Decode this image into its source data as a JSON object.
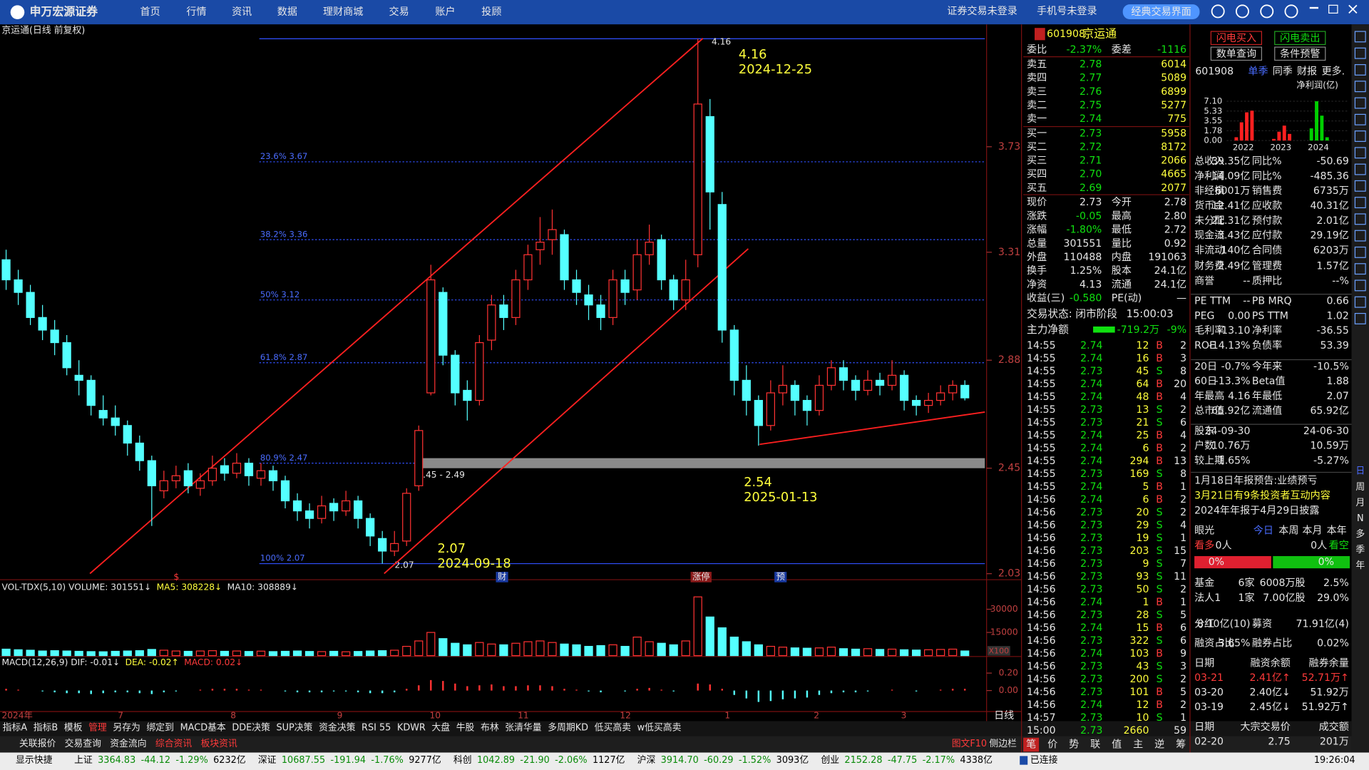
{
  "header": {
    "logo": "申万宏源证券",
    "nav": [
      "首页",
      "行情",
      "资讯",
      "数据",
      "理财商城",
      "交易",
      "账户",
      "投顾"
    ],
    "status": [
      "证券交易未登录",
      "手机号未登录"
    ],
    "button": "经典交易界面"
  },
  "chart_data": {
    "type": "candlestick",
    "title": "京运通(日线 前复权)",
    "up_color": "#ff3232",
    "down_color": "#54ffff",
    "ylim": [
      2.02,
      4.21
    ],
    "yticks": [
      3.73,
      3.31,
      2.88,
      2.45,
      2.03
    ],
    "ohlc": [
      [
        3.28,
        3.32,
        3.16,
        3.2
      ],
      [
        3.2,
        3.24,
        3.1,
        3.15
      ],
      [
        3.15,
        3.18,
        3.02,
        3.05
      ],
      [
        3.05,
        3.1,
        2.96,
        3.0
      ],
      [
        3.0,
        3.04,
        2.9,
        2.95
      ],
      [
        2.95,
        2.98,
        2.82,
        2.85
      ],
      [
        2.82,
        2.88,
        2.74,
        2.8
      ],
      [
        2.8,
        2.82,
        2.66,
        2.7
      ],
      [
        2.68,
        2.74,
        2.62,
        2.65
      ],
      [
        2.65,
        2.7,
        2.58,
        2.62
      ],
      [
        2.62,
        2.64,
        2.5,
        2.55
      ],
      [
        2.55,
        2.58,
        2.44,
        2.48
      ],
      [
        2.48,
        2.5,
        2.22,
        2.38
      ],
      [
        2.36,
        2.44,
        2.33,
        2.4
      ],
      [
        2.4,
        2.46,
        2.37,
        2.42
      ],
      [
        2.44,
        2.47,
        2.35,
        2.38
      ],
      [
        2.37,
        2.43,
        2.34,
        2.4
      ],
      [
        2.4,
        2.5,
        2.38,
        2.45
      ],
      [
        2.46,
        2.49,
        2.4,
        2.43
      ],
      [
        2.43,
        2.51,
        2.41,
        2.47
      ],
      [
        2.47,
        2.49,
        2.38,
        2.42
      ],
      [
        2.41,
        2.47,
        2.38,
        2.44
      ],
      [
        2.44,
        2.46,
        2.36,
        2.4
      ],
      [
        2.4,
        2.42,
        2.29,
        2.32
      ],
      [
        2.32,
        2.35,
        2.24,
        2.28
      ],
      [
        2.28,
        2.31,
        2.21,
        2.25
      ],
      [
        2.25,
        2.34,
        2.23,
        2.3
      ],
      [
        2.31,
        2.33,
        2.24,
        2.28
      ],
      [
        2.28,
        2.36,
        2.26,
        2.32
      ],
      [
        2.32,
        2.34,
        2.21,
        2.25
      ],
      [
        2.25,
        2.27,
        2.14,
        2.18
      ],
      [
        2.17,
        2.2,
        2.07,
        2.12
      ],
      [
        2.12,
        2.2,
        2.1,
        2.15
      ],
      [
        2.16,
        2.37,
        2.14,
        2.35
      ],
      [
        2.38,
        2.62,
        2.36,
        2.6
      ],
      [
        2.75,
        3.26,
        2.74,
        3.2
      ],
      [
        3.15,
        3.17,
        2.86,
        2.9
      ],
      [
        2.9,
        2.92,
        2.7,
        2.75
      ],
      [
        2.76,
        2.8,
        2.64,
        2.72
      ],
      [
        2.72,
        2.98,
        2.7,
        2.95
      ],
      [
        2.96,
        3.14,
        2.92,
        3.1
      ],
      [
        3.1,
        3.14,
        3.0,
        3.05
      ],
      [
        3.05,
        3.24,
        3.02,
        3.2
      ],
      [
        3.2,
        3.34,
        3.16,
        3.3
      ],
      [
        3.32,
        3.45,
        3.26,
        3.35
      ],
      [
        3.36,
        3.48,
        3.3,
        3.4
      ],
      [
        3.38,
        3.4,
        3.16,
        3.2
      ],
      [
        3.2,
        3.24,
        3.1,
        3.15
      ],
      [
        3.14,
        3.18,
        3.04,
        3.1
      ],
      [
        3.1,
        3.14,
        3.0,
        3.05
      ],
      [
        3.05,
        3.24,
        3.02,
        3.2
      ],
      [
        3.2,
        3.24,
        3.1,
        3.15
      ],
      [
        3.16,
        3.36,
        3.12,
        3.3
      ],
      [
        3.3,
        3.42,
        3.26,
        3.35
      ],
      [
        3.36,
        3.38,
        3.16,
        3.2
      ],
      [
        3.2,
        3.22,
        3.08,
        3.12
      ],
      [
        3.12,
        3.28,
        3.08,
        3.2
      ],
      [
        3.3,
        4.16,
        3.25,
        3.9
      ],
      [
        3.85,
        3.92,
        3.4,
        3.55
      ],
      [
        3.5,
        3.55,
        2.95,
        3.0
      ],
      [
        3.0,
        3.02,
        2.74,
        2.8
      ],
      [
        2.8,
        2.86,
        2.66,
        2.72
      ],
      [
        2.72,
        2.74,
        2.54,
        2.62
      ],
      [
        2.62,
        2.8,
        2.6,
        2.75
      ],
      [
        2.75,
        2.86,
        2.7,
        2.78
      ],
      [
        2.78,
        2.8,
        2.66,
        2.72
      ],
      [
        2.72,
        2.74,
        2.62,
        2.68
      ],
      [
        2.68,
        2.82,
        2.66,
        2.78
      ],
      [
        2.78,
        2.88,
        2.76,
        2.85
      ],
      [
        2.85,
        2.88,
        2.76,
        2.8
      ],
      [
        2.8,
        2.82,
        2.72,
        2.76
      ],
      [
        2.76,
        2.84,
        2.74,
        2.8
      ],
      [
        2.8,
        2.83,
        2.74,
        2.78
      ],
      [
        2.78,
        2.88,
        2.76,
        2.82
      ],
      [
        2.82,
        2.84,
        2.68,
        2.72
      ],
      [
        2.72,
        2.74,
        2.66,
        2.7
      ],
      [
        2.7,
        2.75,
        2.67,
        2.72
      ],
      [
        2.72,
        2.78,
        2.7,
        2.75
      ],
      [
        2.75,
        2.8,
        2.72,
        2.78
      ],
      [
        2.78,
        2.8,
        2.72,
        2.73
      ]
    ],
    "fib": [
      {
        "label": "23.6% 3.67",
        "value": 3.67
      },
      {
        "label": "38.2% 3.36",
        "value": 3.36
      },
      {
        "label": "50% 3.12",
        "value": 3.12
      },
      {
        "label": "61.8% 2.87",
        "value": 2.87
      },
      {
        "label": "80.9% 2.47",
        "value": 2.47
      },
      {
        "label": "100% 2.07",
        "value": 2.07
      }
    ],
    "high": 4.16,
    "low": 2.07,
    "zone": {
      "low": 2.45,
      "high": 2.49,
      "label": "2.45 - 2.49"
    },
    "annotations": [
      {
        "price": "4.16",
        "date": "2024-12-25"
      },
      {
        "price": "2.54",
        "date": "2025-01-13"
      },
      {
        "price": "2.07",
        "date": "2024-09-18"
      }
    ],
    "x_labels": [
      "2024年",
      "7",
      "8",
      "9",
      "10",
      "11",
      "12",
      "1",
      "2",
      "3"
    ],
    "events": [
      "$",
      "财",
      "涨停",
      "预"
    ],
    "period": "日线",
    "vol_title": [
      "VOL-TDX(5,10) VOLUME: 301551↓",
      "MA5: 308228↓",
      "MA10: 308889↓"
    ],
    "volume": [
      4200,
      3800,
      3500,
      3000,
      3200,
      3000,
      2800,
      2600,
      2500,
      2800,
      3000,
      3200,
      4000,
      3500,
      3000,
      2800,
      3000,
      3200,
      2800,
      3000,
      2700,
      2900,
      2600,
      2800,
      3000,
      2700,
      2600,
      2800,
      2500,
      2700,
      3000,
      3200,
      3500,
      6000,
      9500,
      15000,
      11000,
      8000,
      7000,
      8500,
      7500,
      7000,
      8000,
      9000,
      9500,
      8500,
      7500,
      7000,
      6000,
      6500,
      7000,
      6000,
      12000,
      9000,
      8000,
      7000,
      9500,
      38000,
      25000,
      18000,
      12000,
      9000,
      7000,
      6000,
      5500,
      5000,
      4800,
      5000,
      5500,
      4500,
      4200,
      4500,
      4000,
      4200,
      3800,
      3600,
      3800,
      4000,
      4200,
      3015
    ],
    "vol_ylim": [
      0,
      48000
    ],
    "vol_yticks": [
      30000,
      15000
    ],
    "vol_unit": "X100",
    "macd_title": [
      "MACD(12,26,9) DIF: -0.01↓",
      "DEA: -0.02↑",
      "MACD: 0.02↓"
    ],
    "macd": [
      0.02,
      0.01,
      0,
      -0.01,
      -0.02,
      -0.03,
      -0.03,
      -0.04,
      -0.03,
      -0.02,
      -0.02,
      -0.03,
      -0.04,
      -0.02,
      -0.01,
      0,
      0.01,
      0.02,
      0.02,
      0.02,
      0.01,
      0.01,
      0,
      -0.01,
      -0.02,
      -0.02,
      -0.02,
      -0.01,
      -0.01,
      -0.02,
      -0.03,
      -0.03,
      -0.02,
      0.02,
      0.06,
      0.12,
      0.11,
      0.08,
      0.05,
      0.06,
      0.07,
      0.05,
      0.05,
      0.06,
      0.06,
      0.05,
      0.02,
      0.01,
      -0.01,
      -0.02,
      0,
      -0.01,
      0.02,
      0.03,
      0.01,
      -0.01,
      0,
      0.08,
      0.07,
      0.02,
      -0.05,
      -0.09,
      -0.13,
      -0.12,
      -0.1,
      -0.09,
      -0.08,
      -0.05,
      -0.03,
      -0.02,
      -0.02,
      -0.01,
      0,
      0.01,
      0,
      -0.01,
      0,
      0.01,
      0.02,
      0.02
    ],
    "macd_ylim": [
      -0.24,
      0.38
    ],
    "macd_yticks": [
      {
        "value": 0.2,
        "label": "0.20"
      },
      {
        "value": 0,
        "label": "0.00"
      }
    ]
  },
  "quote": {
    "code": "601908",
    "name": "京运通",
    "top": [
      "委比",
      "-2.37%",
      "委差",
      "-1116"
    ],
    "book": [
      [
        "卖五",
        "2.78",
        "6014"
      ],
      [
        "卖四",
        "2.77",
        "5089"
      ],
      [
        "卖三",
        "2.76",
        "6899"
      ],
      [
        "卖二",
        "2.75",
        "5277"
      ],
      [
        "卖一",
        "2.74",
        "775"
      ],
      [
        "买一",
        "2.73",
        "5958"
      ],
      [
        "买二",
        "2.72",
        "8172"
      ],
      [
        "买三",
        "2.71",
        "2066"
      ],
      [
        "买四",
        "2.70",
        "4665"
      ],
      [
        "买五",
        "2.69",
        "2077"
      ]
    ],
    "stats": [
      [
        "现价",
        "2.73",
        "今开",
        "2.78"
      ],
      [
        "涨跌",
        "-0.05",
        "最高",
        "2.80"
      ],
      [
        "涨幅",
        "-1.80%",
        "最低",
        "2.72"
      ],
      [
        "总量",
        "301551",
        "量比",
        "0.92"
      ],
      [
        "外盘",
        "110488",
        "内盘",
        "191063"
      ],
      [
        "换手",
        "1.25%",
        "股本",
        "24.1亿"
      ],
      [
        "净资",
        "4.13",
        "流通",
        "24.1亿"
      ],
      [
        "收益(三)",
        "-0.580",
        "PE(动)",
        "—"
      ]
    ],
    "status": [
      "交易状态: 闭市阶段",
      "15:00:03"
    ],
    "flow": [
      "主力净额",
      "-719.2万",
      "-9%"
    ],
    "ticks": [
      [
        "14:55",
        "2.74",
        "12",
        "B",
        "2"
      ],
      [
        "14:55",
        "2.74",
        "16",
        "B",
        "3"
      ],
      [
        "14:55",
        "2.73",
        "45",
        "S",
        "8"
      ],
      [
        "14:55",
        "2.74",
        "64",
        "B",
        "20"
      ],
      [
        "14:55",
        "2.74",
        "48",
        "B",
        "4"
      ],
      [
        "14:55",
        "2.73",
        "13",
        "S",
        "2"
      ],
      [
        "14:55",
        "2.73",
        "21",
        "S",
        "6"
      ],
      [
        "14:55",
        "2.74",
        "25",
        "B",
        "4"
      ],
      [
        "14:55",
        "2.74",
        "6",
        "B",
        "2"
      ],
      [
        "14:55",
        "2.74",
        "294",
        "B",
        "13"
      ],
      [
        "14:55",
        "2.73",
        "169",
        "S",
        "8"
      ],
      [
        "14:55",
        "2.74",
        "5",
        "B",
        "1"
      ],
      [
        "14:56",
        "2.74",
        "6",
        "B",
        "2"
      ],
      [
        "14:56",
        "2.73",
        "20",
        "S",
        "2"
      ],
      [
        "14:56",
        "2.73",
        "29",
        "S",
        "4"
      ],
      [
        "14:56",
        "2.73",
        "19",
        "S",
        "1"
      ],
      [
        "14:56",
        "2.73",
        "203",
        "S",
        "15"
      ],
      [
        "14:56",
        "2.73",
        "9",
        "S",
        "7"
      ],
      [
        "14:56",
        "2.73",
        "93",
        "S",
        "11"
      ],
      [
        "14:56",
        "2.73",
        "50",
        "S",
        "2"
      ],
      [
        "14:56",
        "2.74",
        "1",
        "B",
        "1"
      ],
      [
        "14:56",
        "2.73",
        "28",
        "S",
        "5"
      ],
      [
        "14:56",
        "2.74",
        "15",
        "B",
        "6"
      ],
      [
        "14:56",
        "2.73",
        "322",
        "S",
        "6"
      ],
      [
        "14:56",
        "2.74",
        "103",
        "B",
        "9"
      ],
      [
        "14:56",
        "2.73",
        "43",
        "S",
        "3"
      ],
      [
        "14:56",
        "2.73",
        "200",
        "S",
        "2"
      ],
      [
        "14:56",
        "2.73",
        "101",
        "B",
        "5"
      ],
      [
        "14:56",
        "2.74",
        "12",
        "B",
        "2"
      ],
      [
        "14:57",
        "2.73",
        "10",
        "S",
        "1"
      ],
      [
        "15:00",
        "2.73",
        "2660",
        "59"
      ]
    ],
    "tabs": [
      "笔",
      "价",
      "势",
      "联",
      "值",
      "主",
      "逆",
      "筹"
    ]
  },
  "f10": {
    "buttons": [
      "闪电买入",
      "闪电卖出",
      "数单查询",
      "条件预警"
    ],
    "code": "601908",
    "tabs": [
      "单季",
      "同季",
      "财报",
      "更多."
    ],
    "mini": {
      "title": "净利润(亿)",
      "ylim": [
        0,
        7.1
      ],
      "yticks": [
        {
          "value": 7.1,
          "label": "7.10"
        },
        5.33,
        3.55,
        1.78,
        {
          "value": 0,
          "label": "0.00"
        }
      ],
      "years": [
        "2022",
        "2023",
        "2024"
      ],
      "colors": [
        "#ff2020",
        "#ff2020",
        "#00d000"
      ],
      "values": [
        0.6,
        3.3,
        5.1,
        5.4,
        0.3,
        1.6,
        2.7,
        1.2,
        2.2,
        7.1,
        4.5,
        0.6
      ]
    },
    "fin": [
      [
        "总收入",
        "39.35亿",
        "同比%",
        "-50.69"
      ],
      [
        "净利润",
        "-14.09亿",
        "同比%",
        "-485.36"
      ],
      [
        "非经损",
        "6001万",
        "销售费",
        "6735万"
      ],
      [
        "货币金",
        "12.41亿",
        "应收款",
        "40.31亿"
      ],
      [
        "未分配",
        "21.31亿",
        "预付款",
        "2.01亿"
      ],
      [
        "现金流",
        "-3.43亿",
        "应付款",
        "29.19亿"
      ],
      [
        "非流动",
        "140亿",
        "合同债",
        "6203万"
      ],
      [
        "财务费",
        "2.49亿",
        "管理费",
        "1.57亿"
      ],
      [
        "商誉",
        "--",
        "质押比",
        "--%"
      ],
      [
        "PE TTM",
        "--",
        "PB MRQ",
        "0.66"
      ],
      [
        "PEG",
        "0.00",
        "PS TTM",
        "1.02"
      ],
      [
        "毛利率",
        "-13.10",
        "净利率",
        "-36.55"
      ],
      [
        "ROE",
        "-14.13%",
        "负债率",
        "53.39"
      ],
      [
        "20日",
        "-0.7%",
        "今年来",
        "-10.5%"
      ],
      [
        "60日",
        "-13.3%",
        "Beta值",
        "1.88"
      ],
      [
        "年最高",
        "4.16",
        "年最低",
        "2.07"
      ],
      [
        "总市值",
        "65.92亿",
        "流通值",
        "65.92亿"
      ],
      [
        "股东",
        "24-09-30",
        "",
        "24-06-30"
      ],
      [
        "户数",
        "10.76万",
        "",
        "10.59万"
      ],
      [
        "较上期",
        "1.65%",
        "",
        "-5.27%"
      ]
    ],
    "news": [
      "1月18日年报预告:业绩预亏",
      "3月21日有9条投资者互动内容",
      "2024年年报于4月29日披露"
    ],
    "view": {
      "title": "眼光",
      "tabs": [
        "今日",
        "本周",
        "本月",
        "本年"
      ],
      "bull": "看多",
      "bull_n": "0人",
      "bear_n": "0人",
      "bear": "看空",
      "bull_pct": "0%",
      "bear_pct": "0%"
    },
    "holders": [
      [
        "基金",
        "6家",
        "6008万股",
        "2.5%"
      ],
      [
        "法人1",
        "1家",
        "7.00亿股",
        "29.0%"
      ]
    ],
    "extra": [
      [
        "分红",
        "8.10亿(10)",
        "募资",
        "71.91亿(4)"
      ],
      [
        "融资占比",
        "3.65%",
        "融券占比",
        "0.02%"
      ]
    ],
    "margin": [
      [
        "日期",
        "融资余额",
        "融券余量"
      ],
      [
        "03-21",
        "2.41亿↑",
        "52.71万↑"
      ],
      [
        "03-20",
        "2.40亿↓",
        "51.92万"
      ],
      [
        "03-19",
        "2.45亿↓",
        "51.92万↑"
      ]
    ],
    "block": [
      [
        "日期",
        "大宗交易价",
        "成交额"
      ],
      [
        "02-20",
        "2.75",
        "201万"
      ]
    ]
  },
  "bottom": {
    "tabs": [
      "指标A",
      "指标B",
      "模板",
      "管理",
      "另存为",
      "绑定到",
      "MACD基本",
      "DDE决策",
      "SUP决策",
      "资金决策",
      "RSI 55",
      "KDWR",
      "大盘",
      "牛股",
      "布林",
      "张清华量",
      "多周期KD",
      "低买高卖",
      "w低买高卖"
    ],
    "tabs2": [
      "关联报价",
      "交易查询",
      "资金流向",
      "综合资讯",
      "板块资讯"
    ],
    "right": [
      "图文F10",
      "侧边栏"
    ]
  },
  "statusbar": {
    "quick": "显示快捷",
    "indices": [
      [
        "上证",
        "3364.83",
        "-44.12",
        "-1.29%",
        "6232亿"
      ],
      [
        "深证",
        "10687.55",
        "-191.94",
        "-1.76%",
        "9277亿"
      ],
      [
        "科创",
        "1042.89",
        "-21.90",
        "-2.06%",
        "1127亿"
      ],
      [
        "沪深",
        "3914.70",
        "-60.29",
        "-1.52%",
        "3093亿"
      ],
      [
        "创业",
        "2152.28",
        "-47.75",
        "-2.17%",
        "4338亿"
      ]
    ],
    "conn": "已连接",
    "time": "19:26:04"
  },
  "toolbar": [
    "日",
    "周",
    "月",
    "N",
    "多",
    "季",
    "年"
  ]
}
